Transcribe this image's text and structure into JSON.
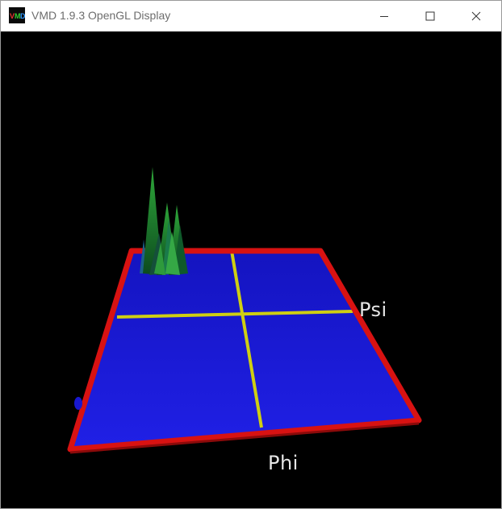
{
  "window": {
    "title": "VMD 1.9.3 OpenGL Display",
    "app_icon": "vmd-logo-icon",
    "controls": {
      "minimize_icon": "minimize-icon",
      "maximize_icon": "maximize-icon",
      "close_icon": "close-icon"
    }
  },
  "plot": {
    "axis_psi_label": "Psi",
    "axis_phi_label": "Phi",
    "colors": {
      "background": "#000000",
      "surface": "#1a1ad8",
      "frame": "#e01414",
      "axis_lines": "#d8d814",
      "peaks": "#1f8a2a",
      "labels": "#e6e6e6"
    }
  }
}
